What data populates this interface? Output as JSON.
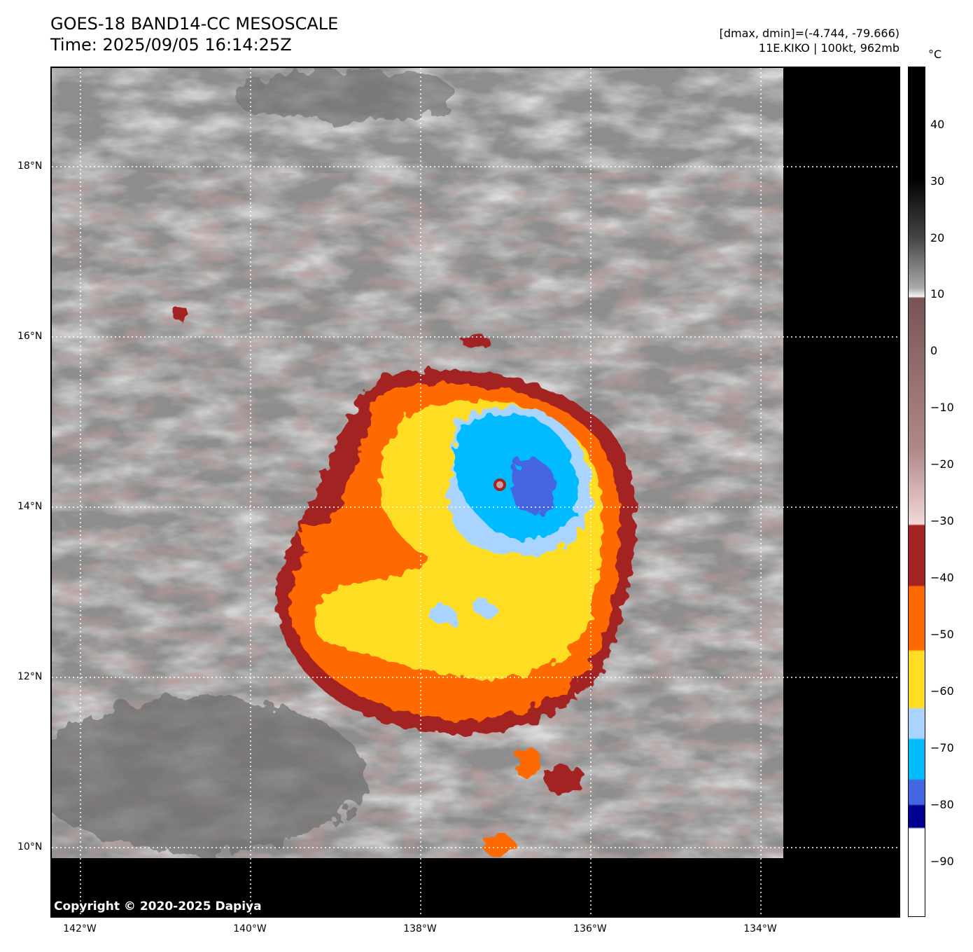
{
  "header": {
    "title_line1": "GOES-18 BAND14-CC MESOSCALE",
    "title_line2": "Time: 2025/09/05 16:14:25Z",
    "info_line1": "[dmax, dmin]=(-4.744, -79.666)",
    "info_line2": "11E.KIKO | 100kt, 962mb"
  },
  "map": {
    "lat_labels": [
      "18°N",
      "16°N",
      "14°N",
      "12°N",
      "10°N"
    ],
    "lon_labels": [
      "142°W",
      "140°W",
      "138°W",
      "136°W",
      "134°W"
    ],
    "copyright": "Copyright © 2020-2025 Dapiya"
  },
  "colorbar": {
    "unit": "°C",
    "ticks": [
      "40",
      "30",
      "20",
      "10",
      "0",
      "−10",
      "−20",
      "−30",
      "−40",
      "−50",
      "−60",
      "−70",
      "−80",
      "−90"
    ],
    "colors": {
      "black": "#000000",
      "gray": "#888888",
      "white": "#f5f5f5",
      "brown": "#7a5454",
      "pink": "#f2d8d8",
      "red": "#a32222",
      "orange": "#ff6a00",
      "yellow": "#ffdd22",
      "light_blue": "#a8d4ff",
      "cyan": "#00bbff",
      "blue": "#4466e0",
      "navy": "#000090"
    }
  }
}
